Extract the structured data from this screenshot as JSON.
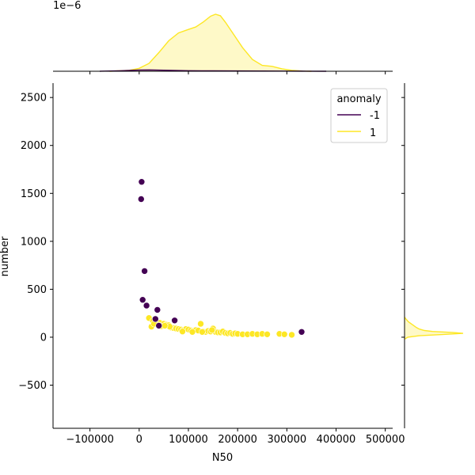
{
  "chart_data": {
    "type": "scatter",
    "xlabel": "N50",
    "ylabel": "number",
    "xlim": [
      -175000,
      515000
    ],
    "ylim": [
      -950,
      2650
    ],
    "x_ticks": [
      -100000,
      0,
      100000,
      200000,
      300000,
      400000,
      500000
    ],
    "x_tick_labels": [
      "−100000",
      "0",
      "100000",
      "200000",
      "300000",
      "400000",
      "500000"
    ],
    "y_ticks": [
      -500,
      0,
      500,
      1000,
      1500,
      2000,
      2500
    ],
    "y_tick_labels": [
      "−500",
      "0",
      "500",
      "1000",
      "1500",
      "2000",
      "2500"
    ],
    "top_marginal_offset_label": "1e−6",
    "legend": {
      "title": "anomaly",
      "position": "upper-right",
      "entries": [
        {
          "label": "-1",
          "color": "#440154"
        },
        {
          "label": "1",
          "color": "#fde725"
        }
      ]
    },
    "grid": false,
    "series": [
      {
        "name": "-1",
        "color": "#440154",
        "points": [
          [
            5000,
            1620
          ],
          [
            4000,
            1440
          ],
          [
            11000,
            690
          ],
          [
            7000,
            390
          ],
          [
            15000,
            330
          ],
          [
            37000,
            285
          ],
          [
            33000,
            190
          ],
          [
            72000,
            175
          ],
          [
            40000,
            120
          ],
          [
            330000,
            55
          ]
        ]
      },
      {
        "name": "1",
        "color": "#fde725",
        "points": [
          [
            20000,
            200
          ],
          [
            28000,
            170
          ],
          [
            35000,
            160
          ],
          [
            42000,
            150
          ],
          [
            50000,
            140
          ],
          [
            55000,
            130
          ],
          [
            60000,
            125
          ],
          [
            25000,
            110
          ],
          [
            45000,
            115
          ],
          [
            65000,
            100
          ],
          [
            70000,
            95
          ],
          [
            75000,
            90
          ],
          [
            80000,
            85
          ],
          [
            85000,
            80
          ],
          [
            90000,
            75
          ],
          [
            95000,
            85
          ],
          [
            100000,
            80
          ],
          [
            105000,
            70
          ],
          [
            110000,
            65
          ],
          [
            115000,
            75
          ],
          [
            120000,
            70
          ],
          [
            125000,
            140
          ],
          [
            130000,
            60
          ],
          [
            135000,
            55
          ],
          [
            140000,
            65
          ],
          [
            145000,
            60
          ],
          [
            150000,
            90
          ],
          [
            155000,
            55
          ],
          [
            160000,
            50
          ],
          [
            165000,
            50
          ],
          [
            170000,
            60
          ],
          [
            175000,
            45
          ],
          [
            180000,
            40
          ],
          [
            185000,
            45
          ],
          [
            190000,
            35
          ],
          [
            195000,
            40
          ],
          [
            200000,
            35
          ],
          [
            210000,
            30
          ],
          [
            220000,
            30
          ],
          [
            230000,
            35
          ],
          [
            240000,
            30
          ],
          [
            250000,
            35
          ],
          [
            260000,
            30
          ],
          [
            285000,
            35
          ],
          [
            295000,
            30
          ],
          [
            310000,
            25
          ],
          [
            88000,
            60
          ],
          [
            108000,
            55
          ],
          [
            128000,
            55
          ],
          [
            148000,
            75
          ],
          [
            62000,
            110
          ],
          [
            52000,
            120
          ],
          [
            38000,
            130
          ],
          [
            30000,
            140
          ]
        ]
      }
    ],
    "marginal_x_kde": {
      "series": [
        {
          "name": "1",
          "color": "#fde725",
          "x": [
            -60000,
            -20000,
            0,
            20000,
            40000,
            60000,
            80000,
            100000,
            115000,
            130000,
            145000,
            155000,
            165000,
            175000,
            190000,
            210000,
            230000,
            250000,
            270000,
            290000,
            310000,
            330000,
            350000
          ],
          "density": [
            0.0,
            0.02,
            0.06,
            0.16,
            0.38,
            0.62,
            0.78,
            0.85,
            0.9,
            1.0,
            1.12,
            1.16,
            1.13,
            1.0,
            0.78,
            0.48,
            0.24,
            0.12,
            0.1,
            0.05,
            0.02,
            0.005,
            0.0
          ]
        },
        {
          "name": "-1",
          "color": "#440154",
          "x": [
            -80000,
            -40000,
            0,
            20000,
            60000,
            100000,
            150000,
            200000,
            250000,
            300000,
            340000,
            380000
          ],
          "density": [
            0.0,
            0.01,
            0.025,
            0.028,
            0.02,
            0.012,
            0.008,
            0.006,
            0.005,
            0.004,
            0.002,
            0.0
          ]
        }
      ]
    },
    "marginal_y_kde": {
      "series": [
        {
          "name": "1",
          "color": "#fde725",
          "y": [
            -20,
            0,
            15,
            30,
            40,
            50,
            60,
            70,
            85,
            100,
            130,
            160,
            190,
            210
          ],
          "density": [
            0.0,
            0.05,
            0.22,
            0.62,
            0.88,
            0.72,
            0.42,
            0.3,
            0.22,
            0.18,
            0.12,
            0.06,
            0.02,
            0.0
          ]
        }
      ]
    }
  }
}
